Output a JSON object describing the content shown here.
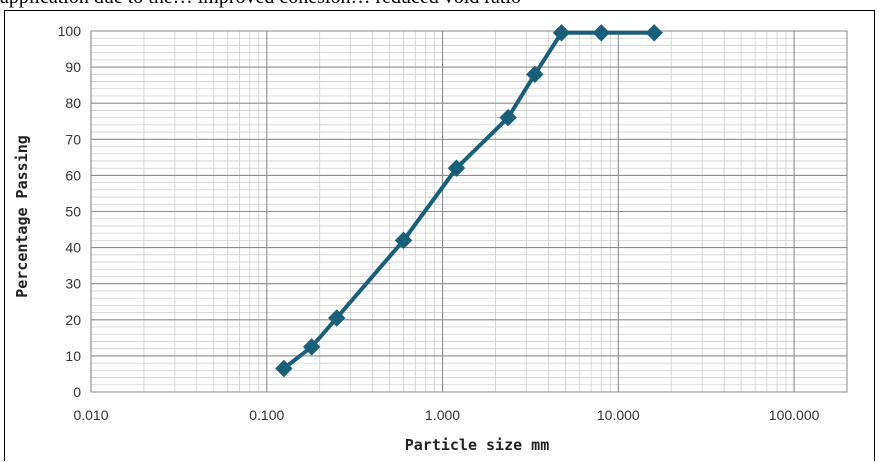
{
  "caption_fragment": "application due to the… improved cohesion… reduced void ratio",
  "chart_data": {
    "type": "line",
    "title": "",
    "xlabel": "Particle size mm",
    "ylabel": "Percentage Passing",
    "x_scale": "log",
    "xlim": [
      0.01,
      200
    ],
    "ylim": [
      0,
      100
    ],
    "x_tick_labels": [
      "0.010",
      "0.100",
      "1.000",
      "10.000",
      "100.000"
    ],
    "x_tick_values": [
      0.01,
      0.1,
      1,
      10,
      100
    ],
    "y_tick_labels": [
      "0",
      "10",
      "20",
      "30",
      "40",
      "50",
      "60",
      "70",
      "80",
      "90",
      "100"
    ],
    "y_tick_values": [
      0,
      10,
      20,
      30,
      40,
      50,
      60,
      70,
      80,
      90,
      100
    ],
    "grid": true,
    "marker": "diamond",
    "color": "#1a5f7a",
    "series": [
      {
        "x": [
          0.125,
          0.18,
          0.25,
          0.6,
          1.2,
          2.36,
          3.35,
          4.75,
          8.0,
          16.0
        ],
        "y": [
          6.5,
          12.5,
          20.5,
          42,
          62,
          76,
          88,
          99.5,
          99.5,
          99.5
        ]
      }
    ]
  }
}
